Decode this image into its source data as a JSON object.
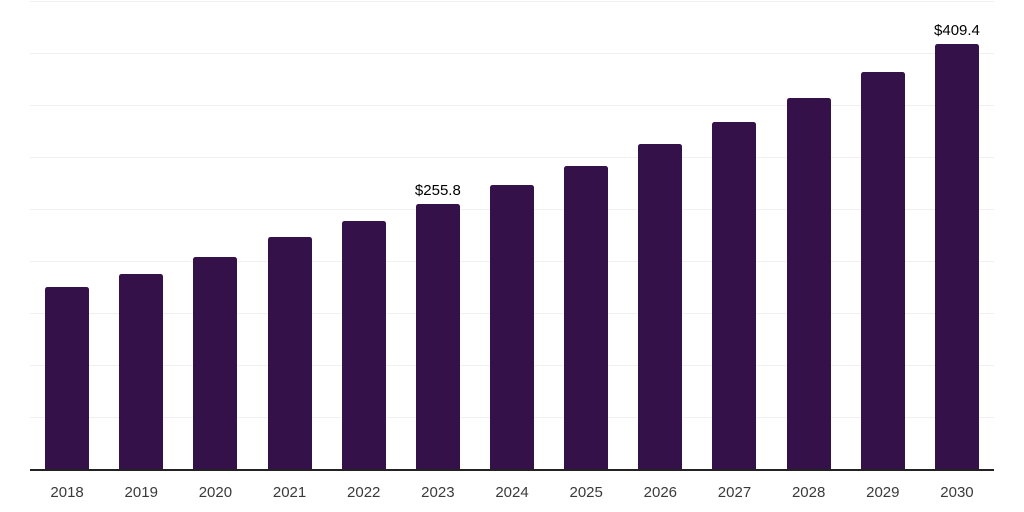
{
  "chart_data": {
    "type": "bar",
    "categories": [
      "2018",
      "2019",
      "2020",
      "2021",
      "2022",
      "2023",
      "2024",
      "2025",
      "2026",
      "2027",
      "2028",
      "2029",
      "2030"
    ],
    "values": [
      176.3,
      188.2,
      204.5,
      224.3,
      239.7,
      255.8,
      273.6,
      292.6,
      313.0,
      334.7,
      357.9,
      382.8,
      409.4
    ],
    "point_labels": [
      "",
      "",
      "",
      "",
      "",
      "$255.8",
      "",
      "",
      "",
      "",
      "",
      "",
      "$409.4"
    ],
    "title": "",
    "xlabel": "",
    "ylabel": "",
    "ylim": [
      0,
      452
    ],
    "grid": {
      "axis": "y",
      "interval": 50,
      "max_line": 450,
      "visible": true
    },
    "legend": "none",
    "note": "only 2023 and 2030 bars carry data labels; other values estimated from gridlines"
  },
  "colors": {
    "bar": "#351149",
    "gridline": "#f0f0f0",
    "axis_line": "#222222",
    "tick_label": "#3a3a3a",
    "value_label": "#000000",
    "background": "#ffffff"
  }
}
